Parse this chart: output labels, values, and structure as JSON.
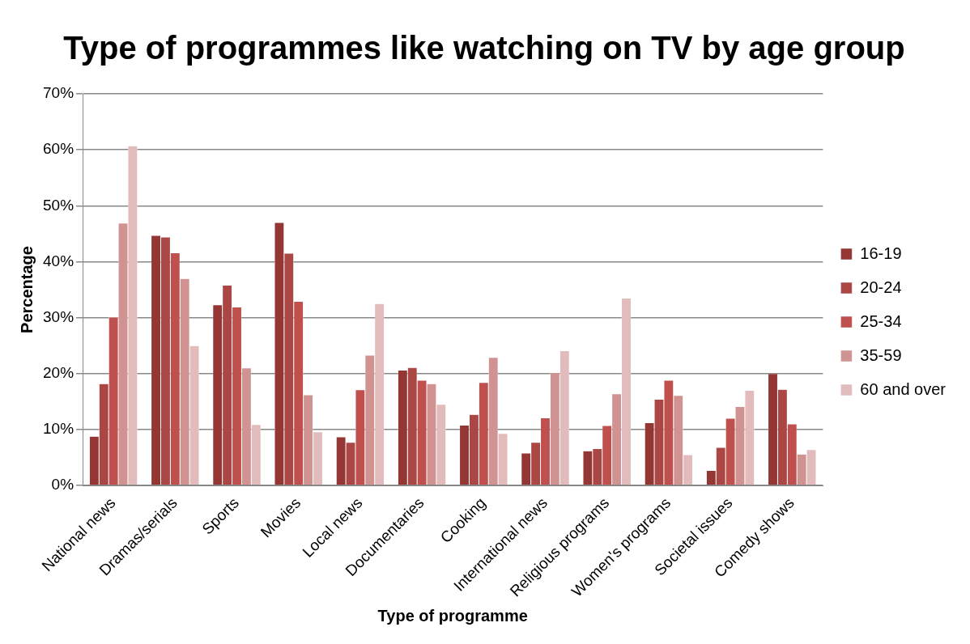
{
  "chart_data": {
    "type": "bar",
    "title": "Type of programmes like watching on TV by age group",
    "xlabel": "Type of programme",
    "ylabel": "Percentage",
    "categories": [
      "National news",
      "Dramas/serials",
      "Sports",
      "Movies",
      "Local news",
      "Documentaries",
      "Cooking",
      "International news",
      "Religious programs",
      "Women's programs",
      "Societal issues",
      "Comedy shows"
    ],
    "series": [
      {
        "name": "16-19",
        "color": "#943634",
        "values": [
          8.8,
          44.7,
          32.3,
          47,
          8.7,
          20.6,
          10.8,
          5.8,
          6.2,
          11.2,
          2.7,
          20
        ]
      },
      {
        "name": "20-24",
        "color": "#aa4644",
        "values": [
          18.2,
          44.4,
          35.8,
          41.5,
          7.7,
          21.1,
          12.7,
          7.7,
          6.6,
          15.4,
          6.8,
          17.2
        ]
      },
      {
        "name": "25-34",
        "color": "#c0504d",
        "values": [
          30.1,
          41.6,
          31.9,
          32.9,
          17.1,
          18.8,
          18.4,
          12.1,
          10.7,
          18.8,
          12,
          11
        ]
      },
      {
        "name": "35-59",
        "color": "#d09392",
        "values": [
          46.9,
          37,
          21,
          16.2,
          23.3,
          18.2,
          22.9,
          20.2,
          16.4,
          16.1,
          14.1,
          5.6
        ]
      },
      {
        "name": "60 and over",
        "color": "#e2bcbc",
        "values": [
          60.7,
          25,
          10.9,
          9.6,
          32.5,
          14.5,
          9.3,
          24.1,
          33.5,
          5.5,
          17,
          6.4
        ]
      }
    ],
    "ylim": [
      0,
      70
    ],
    "yticks": [
      {
        "value": 0,
        "label": "0%"
      },
      {
        "value": 10,
        "label": "10%"
      },
      {
        "value": 20,
        "label": "20%"
      },
      {
        "value": 30,
        "label": "30%"
      },
      {
        "value": 40,
        "label": "40%"
      },
      {
        "value": 50,
        "label": "50%"
      },
      {
        "value": 60,
        "label": "60%"
      },
      {
        "value": 70,
        "label": "70%"
      }
    ],
    "grid": "y",
    "legend": "right"
  }
}
